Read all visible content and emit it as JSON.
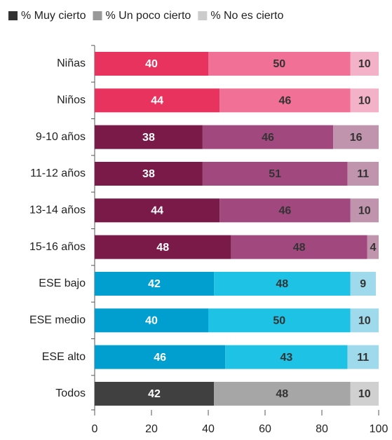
{
  "chart_data": {
    "type": "bar",
    "orientation": "horizontal",
    "stacked": true,
    "categories": [
      "Niñas",
      "Niños",
      "9-10 años",
      "11-12 años",
      "13-14 años",
      "15-16 años",
      "ESE bajo",
      "ESE medio",
      "ESE alto",
      "Todos"
    ],
    "series": [
      {
        "name": "% Muy cierto",
        "color": "#333333",
        "label_color": "#ffffff",
        "values": [
          40,
          44,
          38,
          38,
          44,
          48,
          42,
          40,
          46,
          42
        ],
        "colors": [
          "#e8335f",
          "#e8335f",
          "#7a1a48",
          "#7a1a48",
          "#7a1a48",
          "#7a1a48",
          "#009fcf",
          "#009fcf",
          "#009fcf",
          "#404040"
        ]
      },
      {
        "name": "% Un poco cierto",
        "color": "#999999",
        "label_color": "#333333",
        "values": [
          50,
          46,
          46,
          51,
          46,
          48,
          48,
          50,
          43,
          48
        ],
        "colors": [
          "#f07096",
          "#f07096",
          "#a1497e",
          "#a1497e",
          "#a1497e",
          "#a1497e",
          "#1ec2e4",
          "#1ec2e4",
          "#1ec2e4",
          "#a6a6a6"
        ]
      },
      {
        "name": "% No es cierto",
        "color": "#cccccc",
        "label_color": "#333333",
        "values": [
          10,
          10,
          16,
          11,
          10,
          4,
          9,
          10,
          11,
          10
        ],
        "colors": [
          "#f4b2c8",
          "#f4b2c8",
          "#c094ad",
          "#c094ad",
          "#c094ad",
          "#c094ad",
          "#9ed9ec",
          "#9ed9ec",
          "#9ed9ec",
          "#d0d0d0"
        ]
      }
    ],
    "xlim": [
      0,
      100
    ],
    "xticks": [
      0,
      20,
      40,
      60,
      80,
      100
    ],
    "legend": "top"
  }
}
